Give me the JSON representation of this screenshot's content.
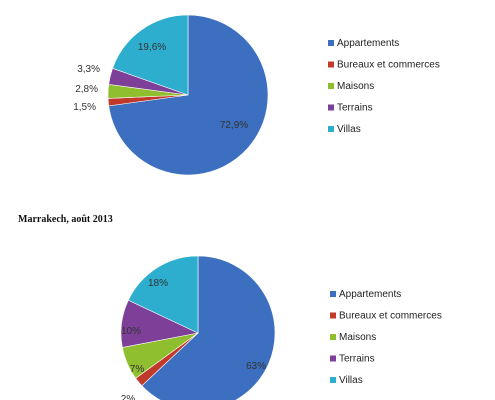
{
  "chart_data": [
    {
      "type": "pie",
      "title": "",
      "categories": [
        "Appartements",
        "Bureaux et commerces",
        "Maisons",
        "Terrains",
        "Villas"
      ],
      "values": [
        72.9,
        1.5,
        2.8,
        3.3,
        19.6
      ],
      "value_labels": [
        "72,9%",
        "1,5%",
        "2,8%",
        "3,3%",
        "19,6%"
      ],
      "colors": [
        "#3c6fbf",
        "#c0392b",
        "#8fbf2f",
        "#7d3f98",
        "#2eaecf"
      ],
      "legend": "right"
    },
    {
      "type": "pie",
      "title": "Marrakech,  août 2013",
      "categories": [
        "Appartements",
        "Bureaux et commerces",
        "Maisons",
        "Terrains",
        "Villas"
      ],
      "values": [
        63,
        2,
        7,
        10,
        18
      ],
      "value_labels": [
        "63%",
        "2%",
        "7%",
        "10%",
        "18%"
      ],
      "colors": [
        "#3c6fbf",
        "#c0392b",
        "#8fbf2f",
        "#7d3f98",
        "#2eaecf"
      ],
      "legend": "right"
    }
  ]
}
